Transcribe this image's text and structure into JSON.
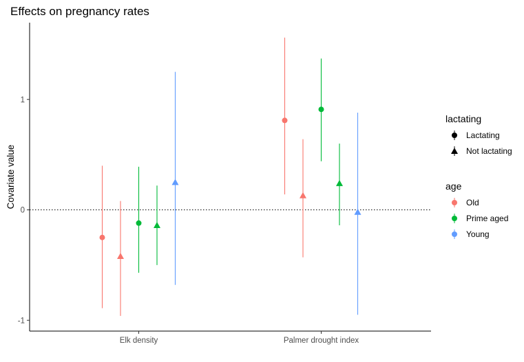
{
  "chart_data": {
    "type": "scatter",
    "title": "Effects on pregnancy rates",
    "xlabel": "",
    "ylabel": "Covariate value",
    "categories": [
      "Elk density",
      "Palmer drought index"
    ],
    "y_ticks": [
      "-1",
      "0",
      "1"
    ],
    "ylim": [
      -1.1,
      1.6
    ],
    "reference_line": {
      "y": 0,
      "style": "dotted"
    },
    "grid": false,
    "legend_position": "right",
    "legends": [
      {
        "title": "lactating",
        "entries": [
          {
            "label": "Lactating",
            "shape": "circle"
          },
          {
            "label": "Not lactating",
            "shape": "triangle"
          }
        ]
      },
      {
        "title": "age",
        "entries": [
          {
            "label": "Old",
            "color": "#F8766D"
          },
          {
            "label": "Prime aged",
            "color": "#00BA38"
          },
          {
            "label": "Young",
            "color": "#619CFF"
          }
        ]
      }
    ],
    "series": [
      {
        "age": "Old",
        "lactating": "Lactating",
        "color": "#F8766D",
        "shape": "circle",
        "points": [
          {
            "category": "Elk density",
            "value": -0.25,
            "lower": -0.89,
            "upper": 0.4
          },
          {
            "category": "Palmer drought index",
            "value": 0.81,
            "lower": 0.14,
            "upper": 1.56
          }
        ]
      },
      {
        "age": "Old",
        "lactating": "Not lactating",
        "color": "#F8766D",
        "shape": "triangle",
        "points": [
          {
            "category": "Elk density",
            "value": -0.42,
            "lower": -0.96,
            "upper": 0.08
          },
          {
            "category": "Palmer drought index",
            "value": 0.13,
            "lower": -0.43,
            "upper": 0.64
          }
        ]
      },
      {
        "age": "Prime aged",
        "lactating": "Lactating",
        "color": "#00BA38",
        "shape": "circle",
        "points": [
          {
            "category": "Elk density",
            "value": -0.12,
            "lower": -0.57,
            "upper": 0.39
          },
          {
            "category": "Palmer drought index",
            "value": 0.91,
            "lower": 0.44,
            "upper": 1.37
          }
        ]
      },
      {
        "age": "Prime aged",
        "lactating": "Not lactating",
        "color": "#00BA38",
        "shape": "triangle",
        "points": [
          {
            "category": "Elk density",
            "value": -0.14,
            "lower": -0.5,
            "upper": 0.22
          },
          {
            "category": "Palmer drought index",
            "value": 0.24,
            "lower": -0.14,
            "upper": 0.6
          }
        ]
      },
      {
        "age": "Young",
        "lactating": "Not lactating",
        "color": "#619CFF",
        "shape": "triangle",
        "points": [
          {
            "category": "Elk density",
            "value": 0.25,
            "lower": -0.68,
            "upper": 1.25
          },
          {
            "category": "Palmer drought index",
            "value": -0.02,
            "lower": -0.95,
            "upper": 0.88
          }
        ]
      }
    ]
  }
}
